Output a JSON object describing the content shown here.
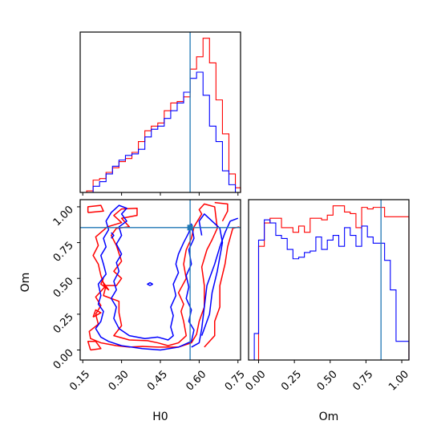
{
  "chart_data": {
    "type": "corner",
    "params": [
      "H0",
      "Om"
    ],
    "truth": {
      "H0": 0.565,
      "Om": 0.855
    },
    "colors": {
      "series_red": "#ff0000",
      "series_blue": "#0000ff",
      "truth": "#1f77b4"
    },
    "grid": false,
    "axes": {
      "H0": {
        "label": "H0",
        "range": [
          0.14,
          0.76
        ],
        "ticks": [
          0.15,
          0.3,
          0.45,
          0.6,
          0.75
        ],
        "tick_labels": [
          "0.15",
          "0.30",
          "0.45",
          "0.60",
          "0.75"
        ]
      },
      "Om": {
        "label": "Om",
        "range": [
          -0.07,
          1.05
        ],
        "ticks": [
          0.0,
          0.25,
          0.5,
          0.75,
          1.0
        ],
        "tick_labels": [
          "0.00",
          "0.25",
          "0.50",
          "0.75",
          "1.00"
        ]
      }
    },
    "hist_H0": {
      "bin_edges": [
        0.14,
        0.165,
        0.19,
        0.215,
        0.24,
        0.265,
        0.29,
        0.315,
        0.34,
        0.365,
        0.39,
        0.415,
        0.44,
        0.465,
        0.49,
        0.515,
        0.54,
        0.565,
        0.59,
        0.615,
        0.64,
        0.665,
        0.69,
        0.715,
        0.74,
        0.76
      ],
      "series": [
        {
          "color": "red",
          "counts": [
            0,
            1,
            8,
            9,
            13,
            16,
            20,
            22,
            26,
            33,
            40,
            43,
            45,
            53,
            58,
            59,
            62,
            80,
            88,
            100,
            84,
            60,
            38,
            12,
            3
          ]
        },
        {
          "color": "blue",
          "counts": [
            0,
            0,
            4,
            7,
            12,
            17,
            21,
            24,
            25,
            28,
            36,
            41,
            43,
            48,
            53,
            58,
            65,
            74,
            78,
            63,
            43,
            33,
            14,
            5,
            0
          ]
        }
      ]
    },
    "hist_Om": {
      "bin_edges": [
        -0.07,
        -0.03,
        0.0,
        0.04,
        0.08,
        0.12,
        0.16,
        0.2,
        0.24,
        0.28,
        0.32,
        0.36,
        0.4,
        0.44,
        0.48,
        0.52,
        0.56,
        0.6,
        0.64,
        0.68,
        0.72,
        0.76,
        0.8,
        0.84,
        0.88,
        0.92,
        0.96,
        1.0,
        1.05
      ],
      "series": [
        {
          "color": "red",
          "counts": [
            0,
            0,
            73,
            88,
            91,
            91,
            85,
            85,
            82,
            86,
            82,
            91,
            91,
            90,
            93,
            99,
            99,
            95,
            94,
            85,
            98,
            97,
            98,
            98,
            92,
            92,
            92,
            92,
            0
          ]
        },
        {
          "color": "blue",
          "counts": [
            0,
            17,
            77,
            90,
            88,
            80,
            78,
            71,
            65,
            66,
            69,
            70,
            79,
            71,
            77,
            80,
            73,
            85,
            80,
            73,
            86,
            79,
            75,
            75,
            64,
            45,
            12,
            12,
            0
          ]
        }
      ]
    },
    "contours": [
      {
        "color": "red",
        "paths": [
          [
            [
              0.44,
              0.02
            ],
            [
              0.38,
              0.025
            ],
            [
              0.33,
              0.02
            ],
            [
              0.28,
              0.03
            ],
            [
              0.22,
              0.05
            ],
            [
              0.18,
              0.08
            ],
            [
              0.175,
              0.13
            ],
            [
              0.21,
              0.18
            ],
            [
              0.2,
              0.25
            ],
            [
              0.22,
              0.31
            ],
            [
              0.2,
              0.37
            ],
            [
              0.235,
              0.44
            ],
            [
              0.22,
              0.52
            ],
            [
              0.21,
              0.6
            ],
            [
              0.19,
              0.66
            ],
            [
              0.21,
              0.73
            ],
            [
              0.2,
              0.79
            ],
            [
              0.245,
              0.86
            ],
            [
              0.3,
              0.89
            ],
            [
              0.27,
              0.94
            ],
            [
              0.3,
              0.985
            ],
            [
              0.36,
              0.99
            ],
            [
              0.36,
              0.94
            ],
            [
              0.3,
              0.92
            ],
            [
              0.33,
              0.86
            ],
            [
              0.28,
              0.85
            ],
            [
              0.26,
              0.8
            ],
            [
              0.28,
              0.73
            ],
            [
              0.3,
              0.62
            ],
            [
              0.27,
              0.55
            ],
            [
              0.3,
              0.5
            ],
            [
              0.28,
              0.45
            ],
            [
              0.24,
              0.45
            ],
            [
              0.23,
              0.38
            ],
            [
              0.29,
              0.34
            ],
            [
              0.29,
              0.26
            ],
            [
              0.3,
              0.17
            ],
            [
              0.27,
              0.1
            ],
            [
              0.33,
              0.07
            ],
            [
              0.4,
              0.065
            ],
            [
              0.44,
              0.05
            ],
            [
              0.48,
              0.03
            ],
            [
              0.52,
              0.05
            ],
            [
              0.55,
              0.1
            ],
            [
              0.54,
              0.2
            ],
            [
              0.53,
              0.27
            ],
            [
              0.54,
              0.32
            ],
            [
              0.52,
              0.4
            ],
            [
              0.55,
              0.5
            ],
            [
              0.54,
              0.6
            ],
            [
              0.55,
              0.7
            ],
            [
              0.57,
              0.78
            ],
            [
              0.58,
              0.86
            ],
            [
              0.61,
              0.95
            ],
            [
              0.6,
              0.98
            ],
            [
              0.62,
              1.02
            ],
            [
              0.66,
              1.0
            ],
            [
              0.67,
              0.85
            ],
            [
              0.65,
              0.77
            ],
            [
              0.63,
              0.7
            ],
            [
              0.61,
              0.58
            ],
            [
              0.62,
              0.45
            ],
            [
              0.62,
              0.3
            ],
            [
              0.6,
              0.2
            ],
            [
              0.59,
              0.11
            ],
            [
              0.57,
              0.05
            ],
            [
              0.52,
              0.02
            ],
            [
              0.44,
              0.02
            ]
          ],
          [
            [
              0.62,
              0.02
            ],
            [
              0.66,
              0.1
            ],
            [
              0.66,
              0.2
            ],
            [
              0.68,
              0.3
            ],
            [
              0.68,
              0.45
            ],
            [
              0.7,
              0.6
            ],
            [
              0.71,
              0.72
            ],
            [
              0.73,
              0.85
            ],
            [
              0.755,
              0.86
            ]
          ],
          [
            [
              0.69,
              0.9
            ],
            [
              0.71,
              0.97
            ],
            [
              0.71,
              1.02
            ],
            [
              0.66,
              1.03
            ]
          ],
          [
            [
              0.18,
              0.0
            ],
            [
              0.17,
              0.06
            ],
            [
              0.2,
              0.06
            ],
            [
              0.22,
              0.01
            ],
            [
              0.18,
              0.0
            ]
          ],
          [
            [
              0.17,
              0.96
            ],
            [
              0.17,
              1.0
            ],
            [
              0.22,
              1.01
            ],
            [
              0.23,
              0.97
            ],
            [
              0.17,
              0.96
            ]
          ],
          [
            [
              0.23,
              0.5
            ],
            [
              0.22,
              0.46
            ],
            [
              0.25,
              0.42
            ],
            [
              0.23,
              0.47
            ]
          ],
          [
            [
              0.19,
              0.23
            ],
            [
              0.2,
              0.28
            ],
            [
              0.22,
              0.26
            ],
            [
              0.19,
              0.23
            ]
          ]
        ]
      },
      {
        "color": "blue",
        "paths": [
          [
            [
              0.3,
              0.03
            ],
            [
              0.25,
              0.06
            ],
            [
              0.22,
              0.09
            ],
            [
              0.2,
              0.15
            ],
            [
              0.22,
              0.2
            ],
            [
              0.23,
              0.27
            ],
            [
              0.21,
              0.32
            ],
            [
              0.22,
              0.38
            ],
            [
              0.21,
              0.46
            ],
            [
              0.24,
              0.53
            ],
            [
              0.23,
              0.6
            ],
            [
              0.22,
              0.66
            ],
            [
              0.24,
              0.72
            ],
            [
              0.23,
              0.78
            ],
            [
              0.25,
              0.84
            ],
            [
              0.24,
              0.9
            ],
            [
              0.26,
              0.96
            ],
            [
              0.29,
              1.01
            ],
            [
              0.32,
              0.99
            ],
            [
              0.3,
              0.95
            ],
            [
              0.32,
              0.9
            ],
            [
              0.29,
              0.86
            ],
            [
              0.3,
              0.8
            ],
            [
              0.28,
              0.74
            ],
            [
              0.3,
              0.67
            ],
            [
              0.28,
              0.61
            ],
            [
              0.29,
              0.55
            ],
            [
              0.27,
              0.48
            ],
            [
              0.28,
              0.42
            ],
            [
              0.26,
              0.36
            ],
            [
              0.28,
              0.3
            ],
            [
              0.27,
              0.22
            ],
            [
              0.29,
              0.15
            ],
            [
              0.33,
              0.1
            ],
            [
              0.39,
              0.08
            ],
            [
              0.44,
              0.09
            ],
            [
              0.48,
              0.07
            ],
            [
              0.5,
              0.1
            ],
            [
              0.49,
              0.16
            ],
            [
              0.5,
              0.24
            ],
            [
              0.49,
              0.3
            ],
            [
              0.51,
              0.38
            ],
            [
              0.5,
              0.46
            ],
            [
              0.52,
              0.54
            ],
            [
              0.51,
              0.6
            ],
            [
              0.52,
              0.67
            ],
            [
              0.54,
              0.75
            ],
            [
              0.56,
              0.82
            ],
            [
              0.57,
              0.88
            ],
            [
              0.58,
              0.78
            ],
            [
              0.56,
              0.7
            ],
            [
              0.57,
              0.6
            ],
            [
              0.55,
              0.52
            ],
            [
              0.56,
              0.44
            ],
            [
              0.55,
              0.36
            ],
            [
              0.57,
              0.28
            ],
            [
              0.56,
              0.2
            ],
            [
              0.58,
              0.14
            ],
            [
              0.57,
              0.06
            ],
            [
              0.52,
              0.02
            ],
            [
              0.45,
              0.0
            ],
            [
              0.38,
              0.01
            ],
            [
              0.3,
              0.03
            ]
          ],
          [
            [
              0.57,
              0.02
            ],
            [
              0.6,
              0.05
            ],
            [
              0.61,
              0.15
            ],
            [
              0.62,
              0.3
            ],
            [
              0.63,
              0.45
            ],
            [
              0.66,
              0.6
            ],
            [
              0.68,
              0.72
            ],
            [
              0.7,
              0.82
            ],
            [
              0.72,
              0.9
            ],
            [
              0.75,
              0.92
            ]
          ],
          [
            [
              0.61,
              0.1
            ],
            [
              0.64,
              0.25
            ],
            [
              0.65,
              0.4
            ],
            [
              0.67,
              0.55
            ],
            [
              0.68,
              0.65
            ],
            [
              0.69,
              0.75
            ],
            [
              0.68,
              0.85
            ],
            [
              0.65,
              0.9
            ],
            [
              0.62,
              0.95
            ],
            [
              0.6,
              0.9
            ],
            [
              0.61,
              0.8
            ]
          ],
          [
            [
              0.41,
              0.45
            ],
            [
              0.42,
              0.46
            ],
            [
              0.41,
              0.47
            ],
            [
              0.4,
              0.46
            ],
            [
              0.41,
              0.45
            ]
          ],
          [
            [
              0.26,
              0.78
            ],
            [
              0.27,
              0.8
            ],
            [
              0.26,
              0.82
            ]
          ]
        ]
      }
    ]
  }
}
